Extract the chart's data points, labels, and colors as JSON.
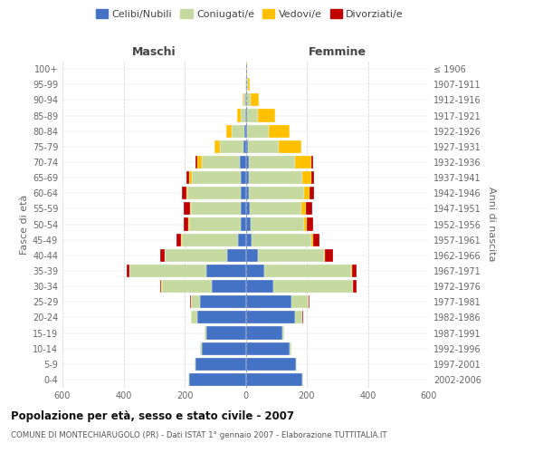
{
  "age_groups": [
    "0-4",
    "5-9",
    "10-14",
    "15-19",
    "20-24",
    "25-29",
    "30-34",
    "35-39",
    "40-44",
    "45-49",
    "50-54",
    "55-59",
    "60-64",
    "65-69",
    "70-74",
    "75-79",
    "80-84",
    "85-89",
    "90-94",
    "95-99",
    "100+"
  ],
  "birth_years": [
    "2002-2006",
    "1997-2001",
    "1992-1996",
    "1987-1991",
    "1982-1986",
    "1977-1981",
    "1972-1976",
    "1967-1971",
    "1962-1966",
    "1957-1961",
    "1952-1956",
    "1947-1951",
    "1942-1946",
    "1937-1941",
    "1932-1936",
    "1927-1931",
    "1922-1926",
    "1917-1921",
    "1912-1916",
    "1907-1911",
    "≤ 1906"
  ],
  "males_celibi": [
    185,
    165,
    145,
    130,
    160,
    150,
    110,
    130,
    60,
    25,
    15,
    15,
    15,
    15,
    20,
    8,
    5,
    2,
    2,
    0,
    0
  ],
  "males_coniugati": [
    2,
    2,
    5,
    5,
    20,
    30,
    165,
    250,
    205,
    185,
    170,
    165,
    175,
    160,
    125,
    75,
    40,
    15,
    5,
    2,
    0
  ],
  "males_vedovi": [
    0,
    0,
    0,
    0,
    0,
    0,
    1,
    1,
    1,
    1,
    2,
    3,
    5,
    10,
    15,
    20,
    20,
    10,
    3,
    0,
    0
  ],
  "males_divorziati": [
    0,
    0,
    0,
    0,
    0,
    2,
    5,
    10,
    15,
    15,
    15,
    20,
    15,
    10,
    5,
    0,
    0,
    0,
    0,
    0,
    0
  ],
  "females_nubili": [
    185,
    165,
    145,
    120,
    160,
    150,
    90,
    60,
    40,
    20,
    15,
    12,
    10,
    10,
    10,
    8,
    5,
    5,
    2,
    2,
    0
  ],
  "females_coniugate": [
    2,
    2,
    5,
    5,
    25,
    55,
    260,
    285,
    215,
    195,
    175,
    170,
    180,
    175,
    150,
    100,
    70,
    35,
    15,
    5,
    2
  ],
  "females_vedove": [
    0,
    0,
    0,
    0,
    0,
    0,
    2,
    2,
    5,
    5,
    10,
    15,
    20,
    30,
    55,
    75,
    70,
    55,
    25,
    5,
    2
  ],
  "females_divorziate": [
    0,
    0,
    0,
    0,
    2,
    5,
    10,
    15,
    25,
    20,
    20,
    20,
    15,
    10,
    5,
    0,
    0,
    0,
    0,
    0,
    0
  ],
  "color_celibi": "#4472c4",
  "color_coniugati": "#c5d9a0",
  "color_vedovi": "#ffc000",
  "color_divorziati": "#c00000",
  "xlim": 600,
  "title": "Popolazione per età, sesso e stato civile - 2007",
  "subtitle": "COMUNE DI MONTECHIARUGOLO (PR) - Dati ISTAT 1° gennaio 2007 - Elaborazione TUTTITALIA.IT",
  "ylabel_left": "Fasce di età",
  "ylabel_right": "Anni di nascita",
  "label_maschi": "Maschi",
  "label_femmine": "Femmine",
  "legend_labels": [
    "Celibi/Nubili",
    "Coniugati/e",
    "Vedovi/e",
    "Divorziati/e"
  ]
}
